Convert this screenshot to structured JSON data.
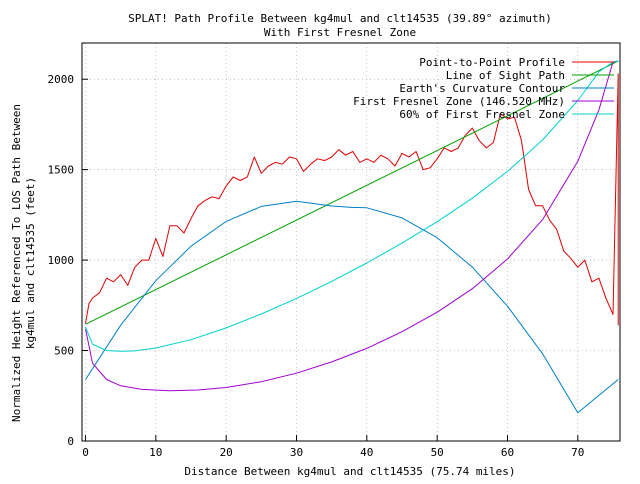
{
  "chart_data": {
    "type": "line",
    "title_line1": "SPLAT! Path Profile Between kg4mul and clt14535 (39.89° azimuth)",
    "title_line2": "With First Fresnel Zone",
    "xlabel": "Distance Between kg4mul and clt14535 (75.74 miles)",
    "ylabel_line1": "Normalized Height Referenced To LOS Path Between",
    "ylabel_line2": "kg4mul and clt14535 (feet)",
    "xlim": [
      -0.5,
      76
    ],
    "ylim": [
      0,
      2200
    ],
    "xticks": [
      0,
      10,
      20,
      30,
      40,
      50,
      60,
      70
    ],
    "yticks": [
      0,
      500,
      1000,
      1500,
      2000
    ],
    "grid": true,
    "legend_position": "top-right",
    "series": [
      {
        "name": "Point-to-Point Profile",
        "color": "#e00000",
        "x": [
          0,
          0.5,
          1,
          2,
          3,
          4,
          5,
          6,
          7,
          8,
          9,
          10,
          11,
          12,
          13,
          14,
          15,
          16,
          17,
          18,
          19,
          20,
          21,
          22,
          23,
          24,
          25,
          26,
          27,
          28,
          29,
          30,
          31,
          32,
          33,
          34,
          35,
          36,
          37,
          38,
          39,
          40,
          41,
          42,
          43,
          44,
          45,
          46,
          47,
          48,
          49,
          50,
          51,
          52,
          53,
          54,
          55,
          56,
          57,
          58,
          59,
          60,
          61,
          62,
          63,
          64,
          65,
          66,
          67,
          68,
          69,
          70,
          71,
          72,
          73,
          74,
          75,
          75.74,
          75.74
        ],
        "y": [
          650,
          760,
          790,
          820,
          900,
          880,
          920,
          860,
          960,
          1000,
          1000,
          1120,
          1020,
          1190,
          1190,
          1150,
          1230,
          1300,
          1330,
          1350,
          1340,
          1410,
          1460,
          1440,
          1460,
          1570,
          1480,
          1520,
          1540,
          1530,
          1570,
          1560,
          1490,
          1530,
          1560,
          1550,
          1570,
          1610,
          1580,
          1600,
          1540,
          1560,
          1540,
          1580,
          1560,
          1520,
          1590,
          1570,
          1600,
          1500,
          1510,
          1560,
          1620,
          1600,
          1620,
          1690,
          1730,
          1660,
          1620,
          1650,
          1810,
          1780,
          1790,
          1660,
          1390,
          1300,
          1300,
          1220,
          1170,
          1050,
          1010,
          960,
          1000,
          880,
          900,
          790,
          700,
          2030,
          640
        ]
      },
      {
        "name": "Line of Sight Path",
        "color": "#00a000",
        "x": [
          0,
          75.74
        ],
        "y": [
          645,
          2100
        ]
      },
      {
        "name": "Earth's Curvature Contour",
        "color": "#0080c8",
        "x": [
          0,
          5,
          10,
          15,
          20,
          25,
          30,
          35,
          37.87,
          40,
          45,
          50,
          55,
          60,
          65,
          70,
          75.74
        ],
        "y": [
          340,
          640,
          886,
          1077,
          1214,
          1297,
          1325,
          1299,
          1291,
          1289,
          1233,
          1124,
          961,
          745,
          482,
          156,
          340
        ]
      },
      {
        "name": "First Fresnel Zone (146.520 MHz)",
        "color": "#a000d0",
        "x": [
          0,
          1,
          3,
          5,
          8,
          12,
          16,
          20,
          25,
          30,
          35,
          40,
          45,
          50,
          55,
          60,
          65,
          70,
          73,
          75,
          75.74
        ],
        "y": [
          620,
          430,
          340,
          305,
          285,
          278,
          282,
          296,
          328,
          375,
          437,
          512,
          604,
          712,
          842,
          1006,
          1224,
          1546,
          1830,
          2095,
          2100
        ]
      },
      {
        "name": "60% of First Fresnel Zone",
        "color": "#00d0d0",
        "x": [
          0,
          1,
          3,
          5,
          7,
          10,
          15,
          20,
          25,
          30,
          35,
          40,
          45,
          50,
          55,
          60,
          65,
          70,
          73,
          75,
          75.74
        ],
        "y": [
          630,
          535,
          500,
          496,
          498,
          514,
          560,
          625,
          702,
          788,
          882,
          984,
          1094,
          1212,
          1342,
          1490,
          1664,
          1882,
          2040,
          2095,
          2100
        ]
      }
    ]
  }
}
